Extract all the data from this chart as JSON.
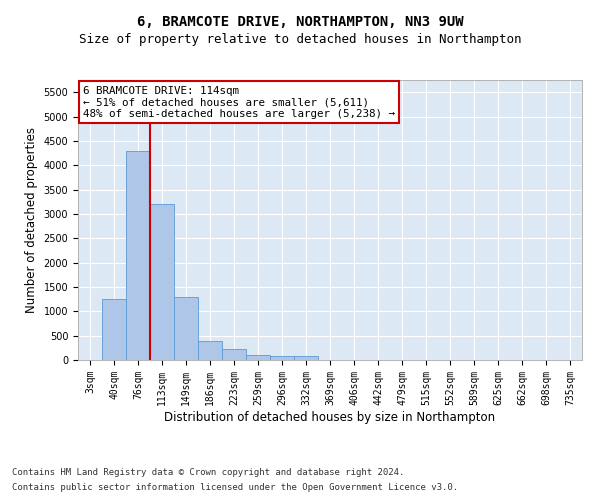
{
  "title_line1": "6, BRAMCOTE DRIVE, NORTHAMPTON, NN3 9UW",
  "title_line2": "Size of property relative to detached houses in Northampton",
  "xlabel": "Distribution of detached houses by size in Northampton",
  "ylabel": "Number of detached properties",
  "bar_color": "#aec6e8",
  "bar_edge_color": "#5b9bd5",
  "vline_color": "#cc0000",
  "annotation_line1": "6 BRAMCOTE DRIVE: 114sqm",
  "annotation_line2": "← 51% of detached houses are smaller (5,611)",
  "annotation_line3": "48% of semi-detached houses are larger (5,238) →",
  "annotation_box_color": "#ffffff",
  "annotation_box_edge": "#cc0000",
  "categories": [
    "3sqm",
    "40sqm",
    "76sqm",
    "113sqm",
    "149sqm",
    "186sqm",
    "223sqm",
    "259sqm",
    "296sqm",
    "332sqm",
    "369sqm",
    "406sqm",
    "442sqm",
    "479sqm",
    "515sqm",
    "552sqm",
    "589sqm",
    "625sqm",
    "662sqm",
    "698sqm",
    "735sqm"
  ],
  "values": [
    0,
    1250,
    4300,
    3200,
    1300,
    400,
    230,
    100,
    80,
    80,
    0,
    0,
    0,
    0,
    0,
    0,
    0,
    0,
    0,
    0,
    0
  ],
  "vline_index": 2.5,
  "ylim": [
    0,
    5750
  ],
  "yticks": [
    0,
    500,
    1000,
    1500,
    2000,
    2500,
    3000,
    3500,
    4000,
    4500,
    5000,
    5500
  ],
  "plot_bg_color": "#dce9f5",
  "footer_line1": "Contains HM Land Registry data © Crown copyright and database right 2024.",
  "footer_line2": "Contains public sector information licensed under the Open Government Licence v3.0.",
  "title_fontsize": 10,
  "subtitle_fontsize": 9,
  "tick_fontsize": 7,
  "label_fontsize": 8.5,
  "footer_fontsize": 6.5
}
